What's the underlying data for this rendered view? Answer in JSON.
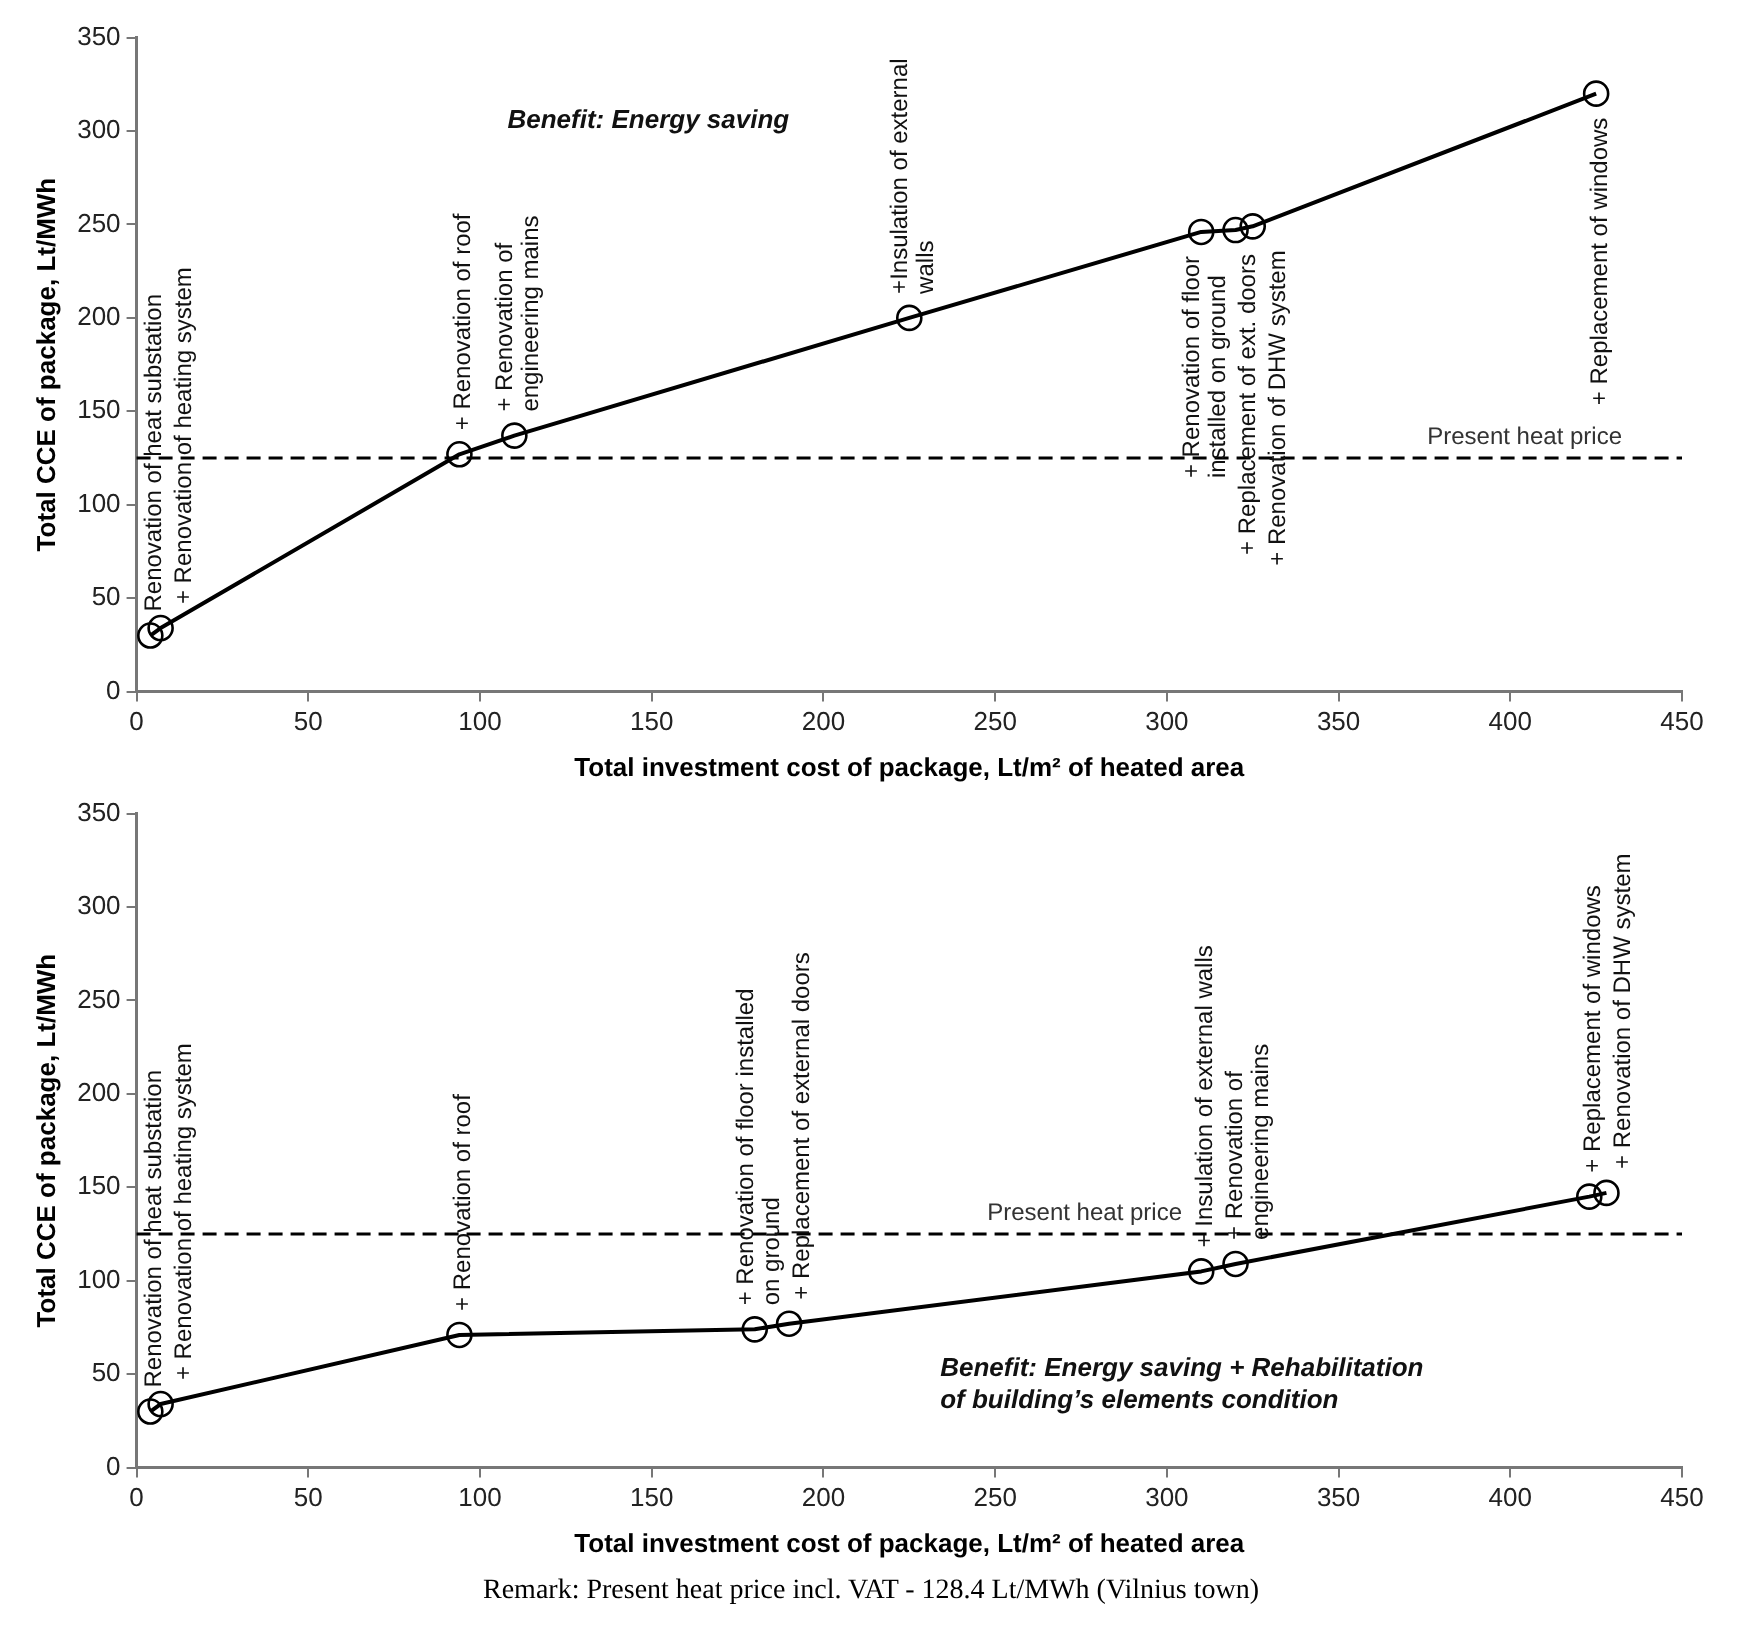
{
  "chart_data": [
    {
      "type": "line",
      "xlabel": "Total investment cost of package, Lt/m² of heated area",
      "ylabel": "Total CCE of package, Lt/MWh",
      "x": [
        4,
        7,
        94,
        110,
        225,
        310,
        320,
        325,
        425
      ],
      "series": [
        {
          "color": "#000000",
          "values": [
            30,
            34,
            127,
            137,
            200,
            246,
            247,
            249,
            320
          ]
        }
      ],
      "xlim": [
        0,
        450
      ],
      "xticks": [
        0,
        50,
        100,
        150,
        200,
        250,
        300,
        350,
        400,
        450
      ],
      "ylim": [
        0,
        350
      ],
      "yticks": [
        0,
        50,
        100,
        150,
        200,
        250,
        300,
        350
      ],
      "marker": "circle",
      "line_style": "solid",
      "ref_lines": [
        {
          "axis": "y",
          "value": 125,
          "label": "Present heat price",
          "line_style": "dashed",
          "color": "#000000"
        }
      ],
      "annotations": [
        "Benefit: Energy saving",
        {
          "text": "Renovation of heat substation",
          "x": 4,
          "y": 30
        },
        {
          "text": "+ Renovation of heating system",
          "x": 7,
          "y": 34
        },
        {
          "text": "+ Renovation of roof",
          "x": 94,
          "y": 127
        },
        {
          "text": "+ Renovation of\nengineering mains",
          "x": 110,
          "y": 137
        },
        {
          "text": "+Insulation of external\nwalls",
          "x": 225,
          "y": 200
        },
        {
          "text": "+ Renovation of floor\ninstalled on ground",
          "x": 310,
          "y": 246
        },
        {
          "text": "+ Replacement of ext. doors",
          "x": 320,
          "y": 247
        },
        {
          "text": "+ Renovation of DHW system",
          "x": 325,
          "y": 249
        },
        {
          "text": "+ Replacement of windows",
          "x": 425,
          "y": 320
        }
      ]
    },
    {
      "type": "line",
      "xlabel": "Total investment cost of package, Lt/m² of heated area",
      "ylabel": "Total CCE of package, Lt/MWh",
      "x": [
        4,
        7,
        94,
        180,
        190,
        310,
        320,
        423,
        428
      ],
      "series": [
        {
          "color": "#000000",
          "values": [
            30,
            34,
            71,
            74,
            77,
            105,
            109,
            145,
            147
          ]
        }
      ],
      "xlim": [
        0,
        450
      ],
      "xticks": [
        0,
        50,
        100,
        150,
        200,
        250,
        300,
        350,
        400,
        450
      ],
      "ylim": [
        0,
        350
      ],
      "yticks": [
        0,
        50,
        100,
        150,
        200,
        250,
        300,
        350
      ],
      "marker": "circle",
      "line_style": "solid",
      "ref_lines": [
        {
          "axis": "y",
          "value": 125,
          "label": "Present heat price",
          "line_style": "dashed",
          "color": "#000000"
        }
      ],
      "annotations": [
        "Benefit: Energy saving + Rehabilitation\nof building’s elements condition",
        "Remark: Present heat price incl. VAT - 128.4 Lt/MWh (Vilnius town)",
        {
          "text": "Renovation of heat substation",
          "x": 4,
          "y": 30
        },
        {
          "text": "+ Renovation of heating system",
          "x": 7,
          "y": 34
        },
        {
          "text": "+ Renovation of roof",
          "x": 94,
          "y": 71
        },
        {
          "text": "+ Renovation of floor installed\non ground",
          "x": 180,
          "y": 74
        },
        {
          "text": "+ Replacement of external doors",
          "x": 190,
          "y": 77
        },
        {
          "text": "+ Insulation of external walls",
          "x": 310,
          "y": 105
        },
        {
          "text": "+ Renovation of\nengineering mains",
          "x": 320,
          "y": 109
        },
        {
          "text": "+ Replacement of windows",
          "x": 423,
          "y": 145
        },
        {
          "text": "+ Renovation of DHW system",
          "x": 428,
          "y": 147
        }
      ]
    }
  ]
}
